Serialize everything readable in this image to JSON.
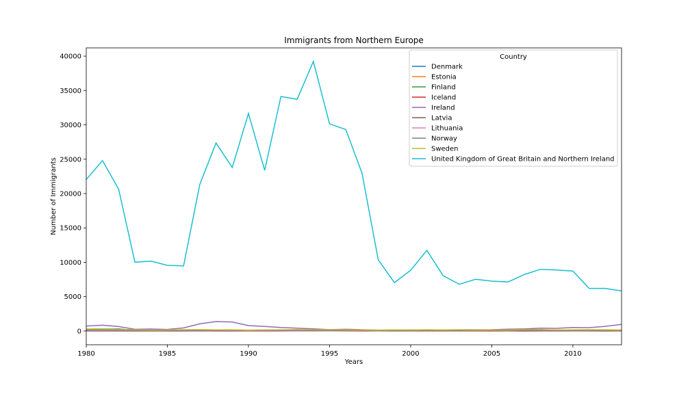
{
  "chart_data": {
    "type": "line",
    "title": "Immigrants from Northern Europe",
    "xlabel": "Years",
    "ylabel": "Number of Immigrants",
    "xlim": [
      1980,
      2013
    ],
    "ylim": [
      -2000,
      41200
    ],
    "xticks": [
      1980,
      1985,
      1990,
      1995,
      2000,
      2005,
      2010
    ],
    "yticks": [
      0,
      5000,
      10000,
      15000,
      20000,
      25000,
      30000,
      35000,
      40000
    ],
    "grid": false,
    "legend_title": "Country",
    "legend_position": "top-right",
    "x": [
      1980,
      1981,
      1982,
      1983,
      1984,
      1985,
      1986,
      1987,
      1988,
      1989,
      1990,
      1991,
      1992,
      1993,
      1994,
      1995,
      1996,
      1997,
      1998,
      1999,
      2000,
      2001,
      2002,
      2003,
      2004,
      2005,
      2006,
      2007,
      2008,
      2009,
      2010,
      2011,
      2012,
      2013
    ],
    "series": [
      {
        "name": "Denmark",
        "color": "#1f77b4",
        "values": [
          272,
          293,
          299,
          106,
          93,
          73,
          93,
          109,
          129,
          129,
          118,
          111,
          158,
          186,
          93,
          111,
          70,
          83,
          63,
          81,
          93,
          81,
          70,
          89,
          89,
          62,
          101,
          97,
          81,
          93,
          81,
          62,
          101,
          89
        ]
      },
      {
        "name": "Estonia",
        "color": "#ff7f0e",
        "values": [
          0,
          0,
          0,
          0,
          0,
          0,
          0,
          0,
          0,
          0,
          0,
          0,
          0,
          1,
          1,
          27,
          42,
          37,
          37,
          48,
          56,
          57,
          60,
          35,
          50,
          42,
          30,
          60,
          44,
          53,
          54,
          50,
          48,
          45
        ]
      },
      {
        "name": "Finland",
        "color": "#2ca02c",
        "values": [
          254,
          248,
          239,
          179,
          106,
          81,
          63,
          137,
          101,
          83,
          76,
          87,
          89,
          105,
          90,
          67,
          87,
          69,
          51,
          49,
          76,
          66,
          58,
          59,
          60,
          56,
          52,
          60,
          56,
          61,
          46,
          54,
          67,
          55
        ]
      },
      {
        "name": "Iceland",
        "color": "#d62728",
        "values": [
          4,
          8,
          9,
          8,
          10,
          2,
          12,
          10,
          6,
          8,
          10,
          6,
          11,
          17,
          14,
          12,
          13,
          9,
          10,
          9,
          16,
          12,
          20,
          14,
          15,
          9,
          11,
          9,
          13,
          17,
          14,
          11,
          8,
          11
        ]
      },
      {
        "name": "Ireland",
        "color": "#9467bd",
        "values": [
          723,
          849,
          646,
          254,
          290,
          224,
          448,
          1050,
          1366,
          1311,
          792,
          663,
          508,
          419,
          308,
          200,
          254,
          191,
          130,
          126,
          147,
          163,
          148,
          195,
          177,
          190,
          269,
          304,
          409,
          393,
          508,
          487,
          678,
          961
        ]
      },
      {
        "name": "Latvia",
        "color": "#8c564b",
        "values": [
          0,
          0,
          0,
          0,
          0,
          0,
          0,
          0,
          0,
          0,
          0,
          0,
          0,
          35,
          72,
          79,
          83,
          56,
          46,
          40,
          61,
          43,
          49,
          41,
          64,
          59,
          74,
          63,
          91,
          74,
          92,
          68,
          86,
          55
        ]
      },
      {
        "name": "Lithuania",
        "color": "#e377c2",
        "values": [
          0,
          0,
          0,
          0,
          0,
          0,
          0,
          0,
          0,
          0,
          0,
          0,
          0,
          11,
          15,
          16,
          44,
          51,
          45,
          45,
          74,
          103,
          105,
          114,
          121,
          123,
          112,
          126,
          102,
          130,
          121,
          130,
          123,
          104
        ]
      },
      {
        "name": "Norway",
        "color": "#7f7f7f",
        "values": [
          116,
          77,
          106,
          51,
          31,
          54,
          56,
          80,
          73,
          76,
          83,
          103,
          74,
          92,
          60,
          65,
          70,
          104,
          31,
          36,
          56,
          78,
          74,
          77,
          73,
          57,
          53,
          73,
          66,
          75,
          46,
          49,
          53,
          59
        ]
      },
      {
        "name": "Sweden",
        "color": "#bcbd22",
        "values": [
          281,
          308,
          222,
          176,
          128,
          158,
          187,
          198,
          171,
          182,
          130,
          167,
          179,
          203,
          192,
          176,
          161,
          151,
          123,
          170,
          138,
          184,
          149,
          159,
          134,
          140,
          140,
          220,
          212,
          155,
          179,
          185,
          183,
          157
        ]
      },
      {
        "name": "United Kingdom of Great Britain and Northern Ireland",
        "color": "#17becf",
        "values": [
          22045,
          24796,
          20620,
          10015,
          10170,
          9564,
          9470,
          21337,
          27359,
          23795,
          31668,
          23380,
          34123,
          33720,
          39231,
          30145,
          29322,
          22965,
          10367,
          7045,
          8840,
          11728,
          8046,
          6797,
          7533,
          7258,
          7140,
          8216,
          8979,
          8876,
          8724,
          6204,
          6195,
          5827
        ]
      }
    ]
  }
}
